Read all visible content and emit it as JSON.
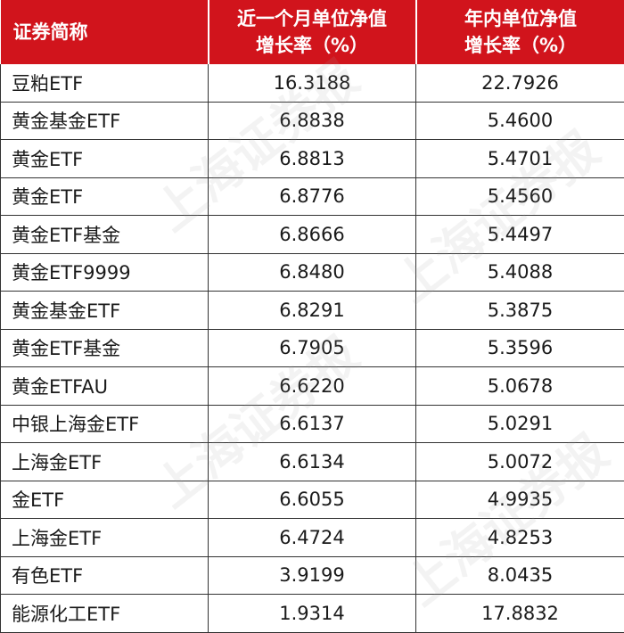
{
  "header": {
    "col1": "证券简称",
    "col2_line1": "近一个月单位净值",
    "col2_line2": "增长率（%）",
    "col3_line1": "年内单位净值",
    "col3_line2": "增长率（%）"
  },
  "rows": [
    {
      "name": "豆粕ETF",
      "month": "16.3188",
      "ytd": "22.7926"
    },
    {
      "name": "黄金基金ETF",
      "month": "6.8838",
      "ytd": "5.4600"
    },
    {
      "name": "黄金ETF",
      "month": "6.8813",
      "ytd": "5.4701"
    },
    {
      "name": "黄金ETF",
      "month": "6.8776",
      "ytd": "5.4560"
    },
    {
      "name": "黄金ETF基金",
      "month": "6.8666",
      "ytd": "5.4497"
    },
    {
      "name": "黄金ETF9999",
      "month": "6.8480",
      "ytd": "5.4088"
    },
    {
      "name": "黄金基金ETF",
      "month": "6.8291",
      "ytd": "5.3875"
    },
    {
      "name": "黄金ETF基金",
      "month": "6.7905",
      "ytd": "5.3596"
    },
    {
      "name": "黄金ETFAU",
      "month": "6.6220",
      "ytd": "5.0678"
    },
    {
      "name": "中银上海金ETF",
      "month": "6.6137",
      "ytd": "5.0291"
    },
    {
      "name": "上海金ETF",
      "month": "6.6134",
      "ytd": "5.0072"
    },
    {
      "name": "金ETF",
      "month": "6.6055",
      "ytd": "4.9935"
    },
    {
      "name": "上海金ETF",
      "month": "6.4724",
      "ytd": "4.8253"
    },
    {
      "name": "有色ETF",
      "month": "3.9199",
      "ytd": "8.0435"
    },
    {
      "name": "能源化工ETF",
      "month": "1.9314",
      "ytd": "17.8832"
    }
  ]
}
